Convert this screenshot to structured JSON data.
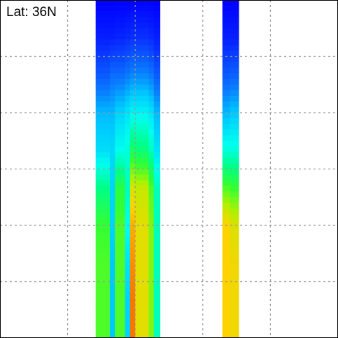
{
  "plot": {
    "label": "Lat: 36N"
  },
  "chart_data": {
    "type": "heatmap",
    "title": "",
    "xlabel": "",
    "ylabel": "",
    "grid": true,
    "colormap": [
      "#0000ff",
      "#0a3cff",
      "#0a78ff",
      "#00c8ff",
      "#00ffee",
      "#00ff88",
      "#33ff33",
      "#b4f000",
      "#ffd200",
      "#ff8c00",
      "#e01400"
    ],
    "note_colors": {
      "background": "#ffffff",
      "grid": "#999999",
      "border": "#000000"
    },
    "columns": [
      {
        "x_start": 0.283,
        "x_end": 0.325,
        "profile": [
          0.0,
          0.05,
          0.15,
          0.28,
          0.34,
          0.5,
          0.6,
          0.62,
          0.62,
          0.62
        ]
      },
      {
        "x_start": 0.325,
        "x_end": 0.34,
        "profile": [
          0.0,
          0.05,
          0.18,
          0.28,
          0.33,
          0.32,
          0.32,
          0.3,
          0.3,
          0.3
        ]
      },
      {
        "x_start": 0.34,
        "x_end": 0.37,
        "profile": [
          0.0,
          0.06,
          0.18,
          0.32,
          0.4,
          0.58,
          0.62,
          0.62,
          0.62,
          0.62
        ]
      },
      {
        "x_start": 0.37,
        "x_end": 0.385,
        "profile": [
          0.0,
          0.07,
          0.2,
          0.35,
          0.42,
          0.45,
          0.4,
          0.35,
          0.32,
          0.32
        ]
      },
      {
        "x_start": 0.385,
        "x_end": 0.4,
        "profile": [
          0.0,
          0.08,
          0.22,
          0.38,
          0.55,
          0.74,
          0.85,
          0.9,
          0.92,
          0.92
        ]
      },
      {
        "x_start": 0.4,
        "x_end": 0.44,
        "profile": [
          0.0,
          0.08,
          0.22,
          0.38,
          0.52,
          0.72,
          0.76,
          0.76,
          0.76,
          0.76
        ]
      },
      {
        "x_start": 0.44,
        "x_end": 0.455,
        "profile": [
          0.0,
          0.07,
          0.2,
          0.35,
          0.45,
          0.62,
          0.66,
          0.66,
          0.66,
          0.66
        ]
      },
      {
        "x_start": 0.455,
        "x_end": 0.473,
        "profile": [
          0.0,
          0.05,
          0.15,
          0.28,
          0.35,
          0.45,
          0.45,
          0.45,
          0.45,
          0.45
        ]
      },
      {
        "x_start": 0.658,
        "x_end": 0.68,
        "profile": [
          0.0,
          0.05,
          0.15,
          0.28,
          0.42,
          0.62,
          0.8,
          0.8,
          0.8,
          0.8
        ]
      },
      {
        "x_start": 0.68,
        "x_end": 0.706,
        "profile": [
          0.0,
          0.05,
          0.16,
          0.3,
          0.42,
          0.6,
          0.75,
          0.78,
          0.78,
          0.78
        ]
      }
    ],
    "ylim": [
      0,
      1
    ],
    "xlim": [
      0,
      1
    ]
  }
}
